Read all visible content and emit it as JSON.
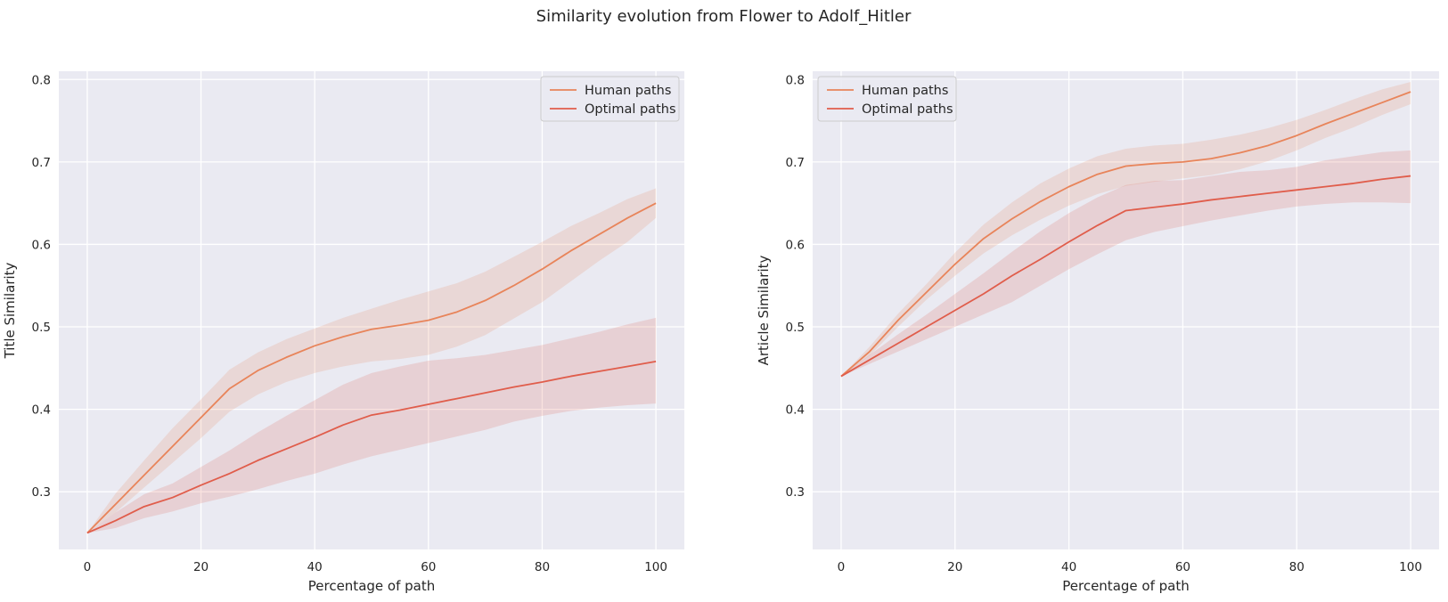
{
  "figure": {
    "title": "Similarity evolution from Flower to Adolf_Hitler"
  },
  "chart_data": [
    {
      "type": "line",
      "ylabel": "Title Similarity",
      "xlabel": "Percentage of path",
      "xlim": [
        -5,
        105
      ],
      "ylim": [
        0.23,
        0.81
      ],
      "xticks": [
        "0",
        "20",
        "40",
        "60",
        "80",
        "100"
      ],
      "yticks": [
        "0.3",
        "0.4",
        "0.5",
        "0.6",
        "0.7",
        "0.8"
      ],
      "grid": true,
      "legend": "upper right",
      "series": [
        {
          "name": "Human paths",
          "color": "#e8845a",
          "x": [
            0,
            5,
            10,
            15,
            20,
            25,
            30,
            35,
            40,
            45,
            50,
            55,
            60,
            65,
            70,
            75,
            80,
            85,
            90,
            95,
            100
          ],
          "y": [
            0.25,
            0.285,
            0.32,
            0.355,
            0.39,
            0.425,
            0.447,
            0.463,
            0.477,
            0.488,
            0.497,
            0.502,
            0.508,
            0.518,
            0.532,
            0.55,
            0.57,
            0.592,
            0.612,
            0.632,
            0.65
          ],
          "ci_low": [
            0.25,
            0.275,
            0.305,
            0.335,
            0.365,
            0.397,
            0.418,
            0.433,
            0.444,
            0.452,
            0.458,
            0.461,
            0.466,
            0.476,
            0.49,
            0.51,
            0.53,
            0.555,
            0.58,
            0.603,
            0.632
          ],
          "ci_high": [
            0.25,
            0.298,
            0.338,
            0.377,
            0.412,
            0.448,
            0.469,
            0.485,
            0.498,
            0.511,
            0.522,
            0.533,
            0.543,
            0.553,
            0.567,
            0.585,
            0.603,
            0.622,
            0.638,
            0.655,
            0.668
          ]
        },
        {
          "name": "Optimal paths",
          "color": "#e05d4b",
          "x": [
            0,
            5,
            10,
            15,
            20,
            25,
            30,
            35,
            40,
            45,
            50,
            55,
            60,
            65,
            70,
            75,
            80,
            85,
            90,
            95,
            100
          ],
          "y": [
            0.25,
            0.265,
            0.282,
            0.293,
            0.308,
            0.322,
            0.338,
            0.352,
            0.366,
            0.381,
            0.393,
            0.399,
            0.406,
            0.413,
            0.42,
            0.427,
            0.433,
            0.44,
            0.446,
            0.452,
            0.458
          ],
          "ci_low": [
            0.25,
            0.256,
            0.268,
            0.276,
            0.286,
            0.294,
            0.303,
            0.313,
            0.322,
            0.333,
            0.343,
            0.351,
            0.359,
            0.367,
            0.375,
            0.385,
            0.392,
            0.398,
            0.402,
            0.405,
            0.407
          ],
          "ci_high": [
            0.25,
            0.275,
            0.297,
            0.31,
            0.33,
            0.35,
            0.372,
            0.392,
            0.411,
            0.43,
            0.444,
            0.452,
            0.459,
            0.462,
            0.466,
            0.472,
            0.478,
            0.486,
            0.494,
            0.503,
            0.511
          ]
        }
      ]
    },
    {
      "type": "line",
      "ylabel": "Article Similarity",
      "xlabel": "Percentage of path",
      "xlim": [
        -5,
        105
      ],
      "ylim": [
        0.23,
        0.81
      ],
      "xticks": [
        "0",
        "20",
        "40",
        "60",
        "80",
        "100"
      ],
      "yticks": [
        "0.3",
        "0.4",
        "0.5",
        "0.6",
        "0.7",
        "0.8"
      ],
      "grid": true,
      "legend": "upper left",
      "series": [
        {
          "name": "Human paths",
          "color": "#e8845a",
          "x": [
            0,
            5,
            10,
            15,
            20,
            25,
            30,
            35,
            40,
            45,
            50,
            55,
            60,
            65,
            70,
            75,
            80,
            85,
            90,
            95,
            100
          ],
          "y": [
            0.44,
            0.47,
            0.508,
            0.542,
            0.576,
            0.607,
            0.631,
            0.652,
            0.67,
            0.685,
            0.695,
            0.698,
            0.7,
            0.704,
            0.711,
            0.72,
            0.732,
            0.746,
            0.759,
            0.772,
            0.785
          ],
          "ci_low": [
            0.44,
            0.465,
            0.5,
            0.533,
            0.562,
            0.589,
            0.611,
            0.63,
            0.647,
            0.661,
            0.671,
            0.676,
            0.68,
            0.684,
            0.691,
            0.701,
            0.714,
            0.729,
            0.742,
            0.757,
            0.77
          ],
          "ci_high": [
            0.44,
            0.476,
            0.516,
            0.552,
            0.59,
            0.624,
            0.651,
            0.674,
            0.692,
            0.707,
            0.716,
            0.72,
            0.722,
            0.727,
            0.733,
            0.741,
            0.751,
            0.763,
            0.776,
            0.788,
            0.797
          ]
        },
        {
          "name": "Optimal paths",
          "color": "#e05d4b",
          "x": [
            0,
            5,
            10,
            15,
            20,
            25,
            30,
            35,
            40,
            45,
            50,
            55,
            60,
            65,
            70,
            75,
            80,
            85,
            90,
            95,
            100
          ],
          "y": [
            0.44,
            0.46,
            0.48,
            0.5,
            0.52,
            0.54,
            0.562,
            0.582,
            0.603,
            0.623,
            0.641,
            0.645,
            0.649,
            0.654,
            0.658,
            0.662,
            0.666,
            0.67,
            0.674,
            0.679,
            0.683
          ],
          "ci_low": [
            0.44,
            0.455,
            0.47,
            0.485,
            0.5,
            0.515,
            0.53,
            0.55,
            0.57,
            0.588,
            0.605,
            0.615,
            0.622,
            0.629,
            0.635,
            0.641,
            0.646,
            0.649,
            0.651,
            0.651,
            0.65
          ],
          "ci_high": [
            0.44,
            0.466,
            0.491,
            0.515,
            0.54,
            0.565,
            0.591,
            0.616,
            0.638,
            0.657,
            0.672,
            0.677,
            0.678,
            0.683,
            0.688,
            0.69,
            0.694,
            0.702,
            0.707,
            0.712,
            0.714
          ]
        }
      ]
    }
  ]
}
